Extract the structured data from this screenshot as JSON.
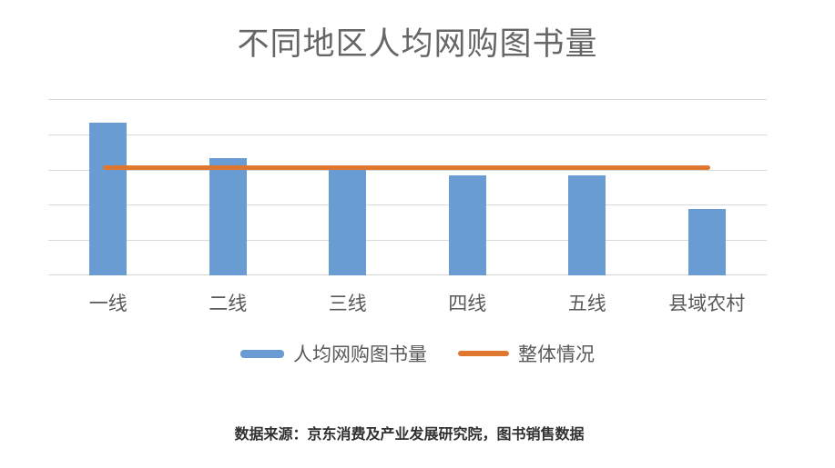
{
  "chart": {
    "title": "不同地区人均网购图书量",
    "source": "数据来源：京东消费及产业发展研究院，图书销售数据",
    "legend": {
      "bar_label": "人均网购图书量",
      "line_label": "整体情况"
    }
  },
  "colors": {
    "bar": "#689cd2",
    "line": "#e0772f",
    "grid": "#d9d9d9",
    "title_text": "#666666",
    "axis_text": "#595959",
    "source_text": "#303030"
  },
  "chart_data": {
    "type": "bar",
    "title": "不同地区人均网购图书量",
    "categories": [
      "一线",
      "二线",
      "三线",
      "四线",
      "五线",
      "县域农村"
    ],
    "series": [
      {
        "name": "人均网购图书量",
        "type": "bar",
        "color": "#689cd2",
        "values": [
          4.33,
          3.32,
          3.0,
          2.83,
          2.83,
          1.87
        ]
      },
      {
        "name": "整体情况",
        "type": "line",
        "color": "#e0772f",
        "values": [
          3.05,
          3.05,
          3.05,
          3.05,
          3.05,
          3.05
        ]
      }
    ],
    "xlabel": "",
    "ylabel": "",
    "ylim": [
      0,
      5
    ],
    "y_tick_labels_shown": false,
    "gridlines": true,
    "gridline_count": 6,
    "legend_position": "bottom",
    "source": "数据来源：京东消费及产业发展研究院，图书销售数据"
  }
}
